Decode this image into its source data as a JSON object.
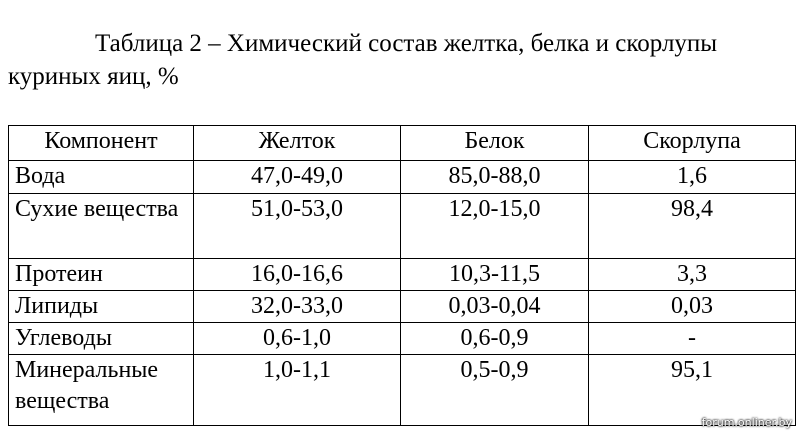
{
  "caption": [
    "Таблица 2 – Химический состав желтка, белка и скорлупы",
    "куриных яиц, %"
  ],
  "table": {
    "header": [
      "Компонент",
      "Желток",
      "Белок",
      "Скорлупа"
    ],
    "rows": [
      [
        "Вода",
        "47,0-49,0",
        "85,0-88,0",
        "1,6"
      ],
      [
        "Сухие вещества",
        "51,0-53,0",
        "12,0-15,0",
        "98,4"
      ],
      [
        "Протеин",
        "16,0-16,6",
        "10,3-11,5",
        "3,3"
      ],
      [
        "Липиды",
        "32,0-33,0",
        "0,03-0,04",
        "0,03"
      ],
      [
        "Углеводы",
        "0,6-1,0",
        "0,6-0,9",
        "-"
      ],
      [
        "Минеральные вещества",
        "1,0-1,1",
        "0,5-0,9",
        "95,1"
      ]
    ]
  },
  "watermark": "forum.onliner.by"
}
